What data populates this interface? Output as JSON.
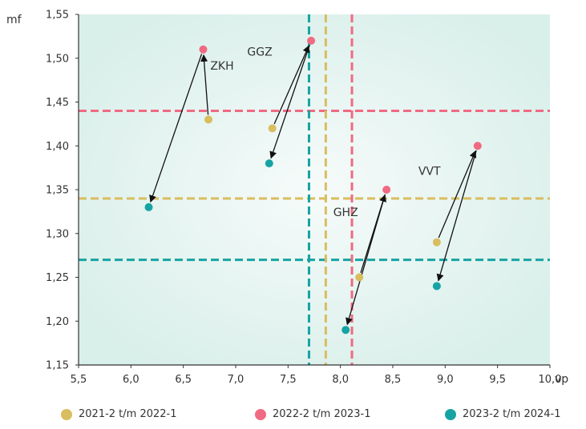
{
  "chart_data": {
    "type": "scatter",
    "xlabel": "vp",
    "ylabel": "mf",
    "xlim": [
      5.5,
      10.0
    ],
    "ylim": [
      1.15,
      1.55
    ],
    "x_ticks": [
      "5,5",
      "6,0",
      "6,5",
      "7,0",
      "7,5",
      "8,0",
      "8,5",
      "9,0",
      "9,5",
      "10,0"
    ],
    "y_ticks": [
      "1,15",
      "1,20",
      "1,25",
      "1,30",
      "1,35",
      "1,40",
      "1,45",
      "1,50",
      "1,55"
    ],
    "series": [
      {
        "name": "2021-2 t/m 2022-1",
        "color": "#d9bd5e",
        "points": [
          {
            "label": "ZKH",
            "x": 6.74,
            "y": 1.43
          },
          {
            "label": "GGZ",
            "x": 7.35,
            "y": 1.42
          },
          {
            "label": "GHZ",
            "x": 8.18,
            "y": 1.25
          },
          {
            "label": "VVT",
            "x": 8.92,
            "y": 1.29
          }
        ]
      },
      {
        "name": "2022-2 t/m 2023-1",
        "color": "#f06a82",
        "points": [
          {
            "label": "ZKH",
            "x": 6.69,
            "y": 1.51
          },
          {
            "label": "GGZ",
            "x": 7.72,
            "y": 1.52
          },
          {
            "label": "GHZ",
            "x": 8.44,
            "y": 1.35
          },
          {
            "label": "VVT",
            "x": 9.31,
            "y": 1.4
          }
        ]
      },
      {
        "name": "2023-2 t/m 2024-1",
        "color": "#17a3a3",
        "points": [
          {
            "label": "ZKH",
            "x": 6.17,
            "y": 1.33
          },
          {
            "label": "GGZ",
            "x": 7.32,
            "y": 1.38
          },
          {
            "label": "GHZ",
            "x": 8.05,
            "y": 1.19
          },
          {
            "label": "VVT",
            "x": 8.92,
            "y": 1.24
          }
        ]
      }
    ],
    "reference_lines": {
      "horizontal": [
        {
          "y": 1.44,
          "color": "#f06a82"
        },
        {
          "y": 1.34,
          "color": "#d9bd5e"
        },
        {
          "y": 1.27,
          "color": "#17a3a3"
        }
      ],
      "vertical": [
        {
          "x": 7.7,
          "color": "#17a3a3"
        },
        {
          "x": 7.86,
          "color": "#d9bd5e"
        },
        {
          "x": 8.11,
          "color": "#f06a82"
        }
      ]
    },
    "arrows": [
      {
        "from": [
          6.74,
          1.43
        ],
        "to": [
          6.69,
          1.51
        ]
      },
      {
        "from": [
          6.69,
          1.51
        ],
        "to": [
          6.17,
          1.33
        ]
      },
      {
        "from": [
          7.35,
          1.42
        ],
        "to": [
          7.72,
          1.52
        ]
      },
      {
        "from": [
          7.72,
          1.52
        ],
        "to": [
          7.32,
          1.38
        ]
      },
      {
        "from": [
          8.18,
          1.25
        ],
        "to": [
          8.44,
          1.35
        ]
      },
      {
        "from": [
          8.44,
          1.35
        ],
        "to": [
          8.05,
          1.19
        ]
      },
      {
        "from": [
          8.92,
          1.29
        ],
        "to": [
          9.31,
          1.4
        ]
      },
      {
        "from": [
          9.31,
          1.4
        ],
        "to": [
          8.92,
          1.24
        ]
      }
    ],
    "annotations": [
      {
        "text": "ZKH",
        "x": 6.87,
        "y": 1.487
      },
      {
        "text": "GGZ",
        "x": 7.23,
        "y": 1.503
      },
      {
        "text": "GHZ",
        "x": 8.05,
        "y": 1.32
      },
      {
        "text": "VVT",
        "x": 8.85,
        "y": 1.367
      }
    ],
    "colors": {
      "background": "#e2f2ef",
      "gradient_center": "#f5fbfa",
      "axis": "#333333"
    },
    "grid": false,
    "legend_position": "bottom"
  }
}
